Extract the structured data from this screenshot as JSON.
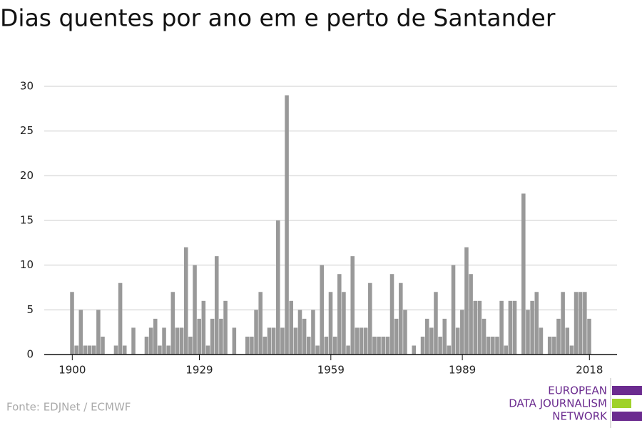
{
  "chart_data": {
    "type": "bar",
    "title": "Dias quentes por ano em e perto de Santander",
    "source": "Fonte: EDJNet / ECMWF",
    "logo": [
      "EUROPEAN",
      "DATA JOURNALISM",
      "NETWORK"
    ],
    "x": [
      1900,
      1901,
      1902,
      1903,
      1904,
      1905,
      1906,
      1907,
      1908,
      1909,
      1910,
      1911,
      1912,
      1913,
      1914,
      1915,
      1916,
      1917,
      1918,
      1919,
      1920,
      1921,
      1922,
      1923,
      1924,
      1925,
      1926,
      1927,
      1928,
      1929,
      1930,
      1931,
      1932,
      1933,
      1934,
      1935,
      1936,
      1937,
      1938,
      1939,
      1940,
      1941,
      1942,
      1943,
      1944,
      1945,
      1946,
      1947,
      1948,
      1949,
      1950,
      1951,
      1952,
      1953,
      1954,
      1955,
      1956,
      1957,
      1958,
      1959,
      1960,
      1961,
      1962,
      1963,
      1964,
      1965,
      1966,
      1967,
      1968,
      1969,
      1970,
      1971,
      1972,
      1973,
      1974,
      1975,
      1976,
      1977,
      1978,
      1979,
      1980,
      1981,
      1982,
      1983,
      1984,
      1985,
      1986,
      1987,
      1988,
      1989,
      1990,
      1991,
      1992,
      1993,
      1994,
      1995,
      1996,
      1997,
      1998,
      1999,
      2000,
      2001,
      2002,
      2003,
      2004,
      2005,
      2006,
      2007,
      2008,
      2009,
      2010,
      2011,
      2012,
      2013,
      2014,
      2015,
      2016,
      2017,
      2018
    ],
    "values": [
      7,
      1,
      5,
      1,
      1,
      1,
      5,
      2,
      0,
      0,
      1,
      8,
      1,
      0,
      3,
      0,
      0,
      2,
      3,
      4,
      1,
      3,
      1,
      7,
      3,
      3,
      12,
      2,
      10,
      4,
      6,
      1,
      4,
      11,
      4,
      6,
      0,
      3,
      0,
      0,
      2,
      2,
      5,
      7,
      2,
      3,
      3,
      15,
      3,
      29,
      6,
      3,
      5,
      4,
      2,
      5,
      1,
      10,
      2,
      7,
      2,
      9,
      7,
      1,
      11,
      3,
      3,
      3,
      8,
      2,
      2,
      2,
      2,
      9,
      4,
      8,
      5,
      0,
      1,
      0,
      2,
      4,
      3,
      7,
      2,
      4,
      1,
      10,
      3,
      5,
      12,
      9,
      6,
      6,
      4,
      2,
      2,
      2,
      6,
      1,
      6,
      6,
      0,
      18,
      5,
      6,
      7,
      3,
      0,
      2,
      2,
      4,
      7,
      3,
      1,
      7,
      7,
      7,
      4
    ],
    "color": "#999999",
    "xlim": [
      1893.6,
      2024.3
    ],
    "xticks": [
      1900,
      1929,
      1959,
      1989,
      2018
    ],
    "ylim": [
      0,
      30
    ],
    "yticks": [
      0,
      5,
      10,
      15,
      20,
      25,
      30
    ],
    "grid": true
  }
}
